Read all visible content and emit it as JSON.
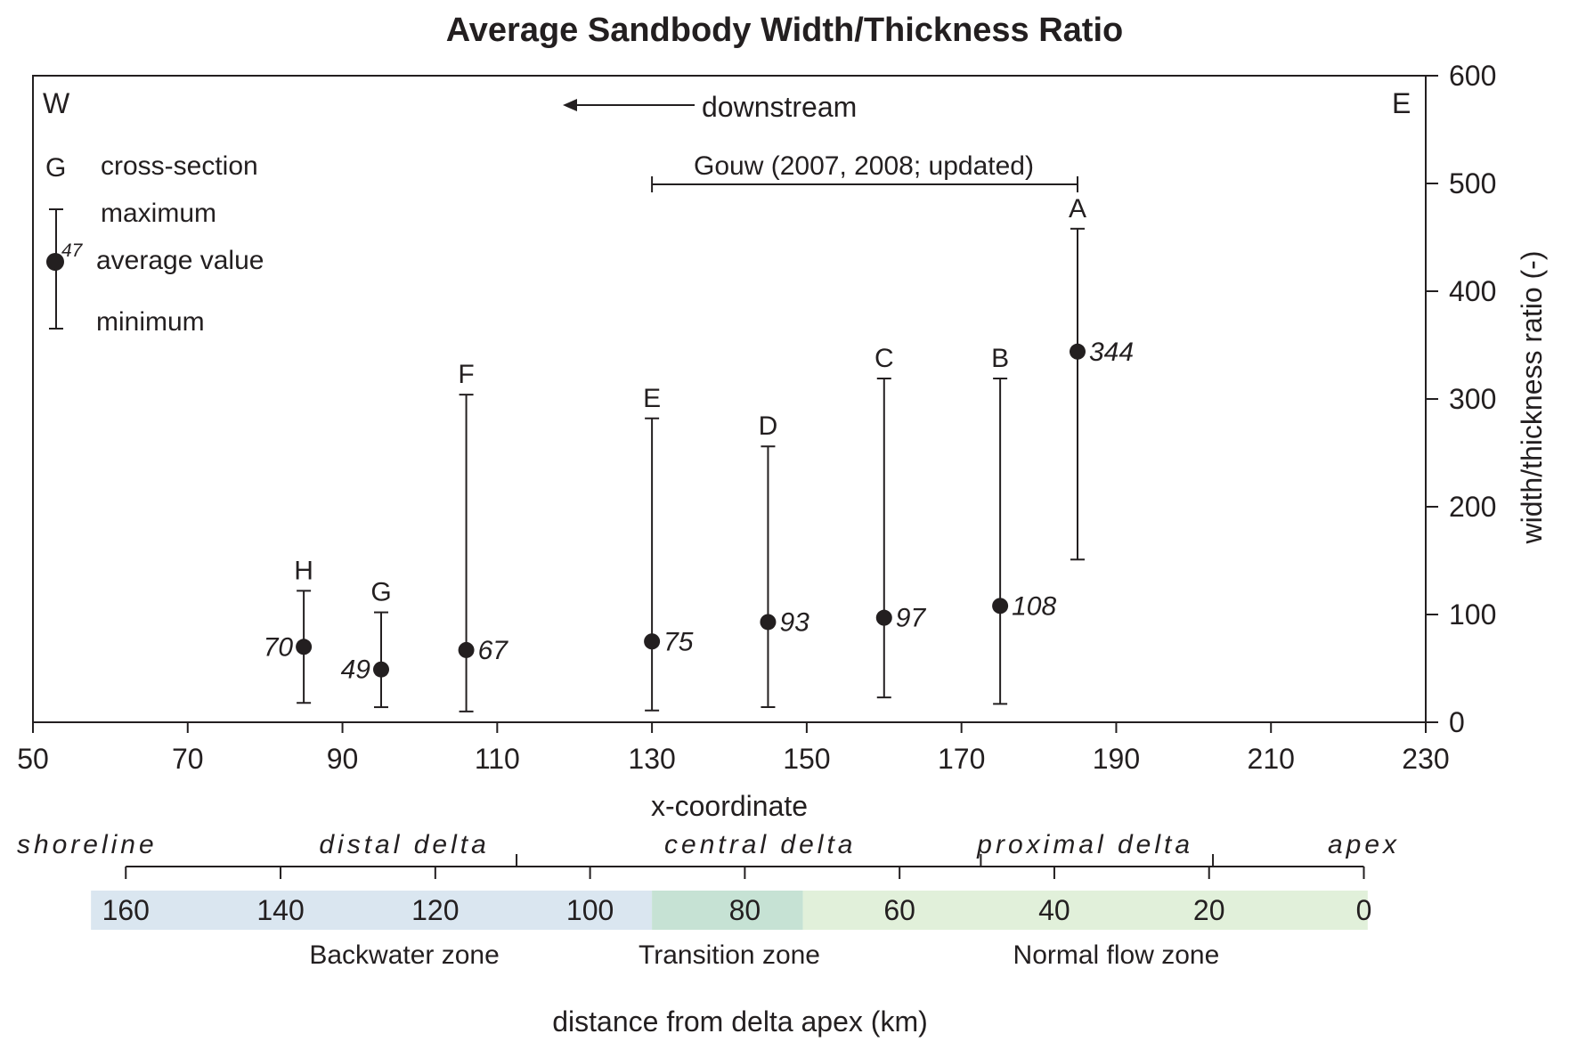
{
  "chart_data": {
    "type": "scatter",
    "title": "Average Sandbody Width/Thickness Ratio",
    "xlabel": "x-coordinate",
    "ylabel": "width/thickness ratio (-)",
    "xlim": [
      50,
      230
    ],
    "ylim": [
      0,
      600
    ],
    "x_ticks": [
      "50",
      "70",
      "90",
      "110",
      "130",
      "150",
      "170",
      "190",
      "210",
      "230"
    ],
    "y_ticks": [
      "0",
      "100",
      "200",
      "300",
      "400",
      "500",
      "600"
    ],
    "grid": false,
    "corner_labels": {
      "west": "W",
      "east": "E"
    },
    "direction_label": "downstream",
    "legend": {
      "letter": "G",
      "letter_label": "cross-section",
      "max_label": "maximum",
      "avg_value": "47",
      "avg_label": "average value",
      "min_label": "minimum"
    },
    "gouw_label": "Gouw (2007, 2008; updated)",
    "gouw_range": [
      130,
      185
    ],
    "points": [
      {
        "section": "H",
        "x": 85,
        "avg": 70,
        "min": 18,
        "max": 122,
        "label": "70"
      },
      {
        "section": "G",
        "x": 95,
        "avg": 49,
        "min": 14,
        "max": 102,
        "label": "49"
      },
      {
        "section": "F",
        "x": 106,
        "avg": 67,
        "min": 10,
        "max": 304,
        "label": "67"
      },
      {
        "section": "E",
        "x": 130,
        "avg": 75,
        "min": 11,
        "max": 282,
        "label": "75"
      },
      {
        "section": "D",
        "x": 145,
        "avg": 93,
        "min": 14,
        "max": 256,
        "label": "93"
      },
      {
        "section": "C",
        "x": 160,
        "avg": 97,
        "min": 23,
        "max": 319,
        "label": "97"
      },
      {
        "section": "B",
        "x": 175,
        "avg": 108,
        "min": 17,
        "max": 319,
        "label": "108"
      },
      {
        "section": "A",
        "x": 185,
        "avg": 344,
        "min": 151,
        "max": 458,
        "label": "344"
      }
    ],
    "delta_zones": [
      {
        "name": "shoreline",
        "x": 57
      },
      {
        "name": "distal delta",
        "x": 98
      },
      {
        "name": "central delta",
        "x": 144
      },
      {
        "name": "proximal delta",
        "x": 186
      },
      {
        "name": "apex",
        "x": 222
      }
    ],
    "zone_divider_x": [
      112.5,
      172.5,
      202.5
    ],
    "distance_ticks": [
      {
        "label": "160",
        "x": 62
      },
      {
        "label": "140",
        "x": 82
      },
      {
        "label": "120",
        "x": 102
      },
      {
        "label": "100",
        "x": 122
      },
      {
        "label": "80",
        "x": 142
      },
      {
        "label": "60",
        "x": 162
      },
      {
        "label": "40",
        "x": 182
      },
      {
        "label": "20",
        "x": 202
      },
      {
        "label": "0",
        "x": 222
      }
    ],
    "flow_zones": [
      {
        "name": "Backwater zone",
        "from": 57.5,
        "to": 130,
        "color": "#dae6f0",
        "label_x": 98
      },
      {
        "name": "Transition zone",
        "from": 130,
        "to": 149.5,
        "color": "#c6e2d4",
        "label_x": 140
      },
      {
        "name": "Normal flow zone",
        "from": 149.5,
        "to": 222.5,
        "color": "#e1f0da",
        "label_x": 190
      }
    ],
    "distance_label": "distance from delta apex (km)"
  }
}
